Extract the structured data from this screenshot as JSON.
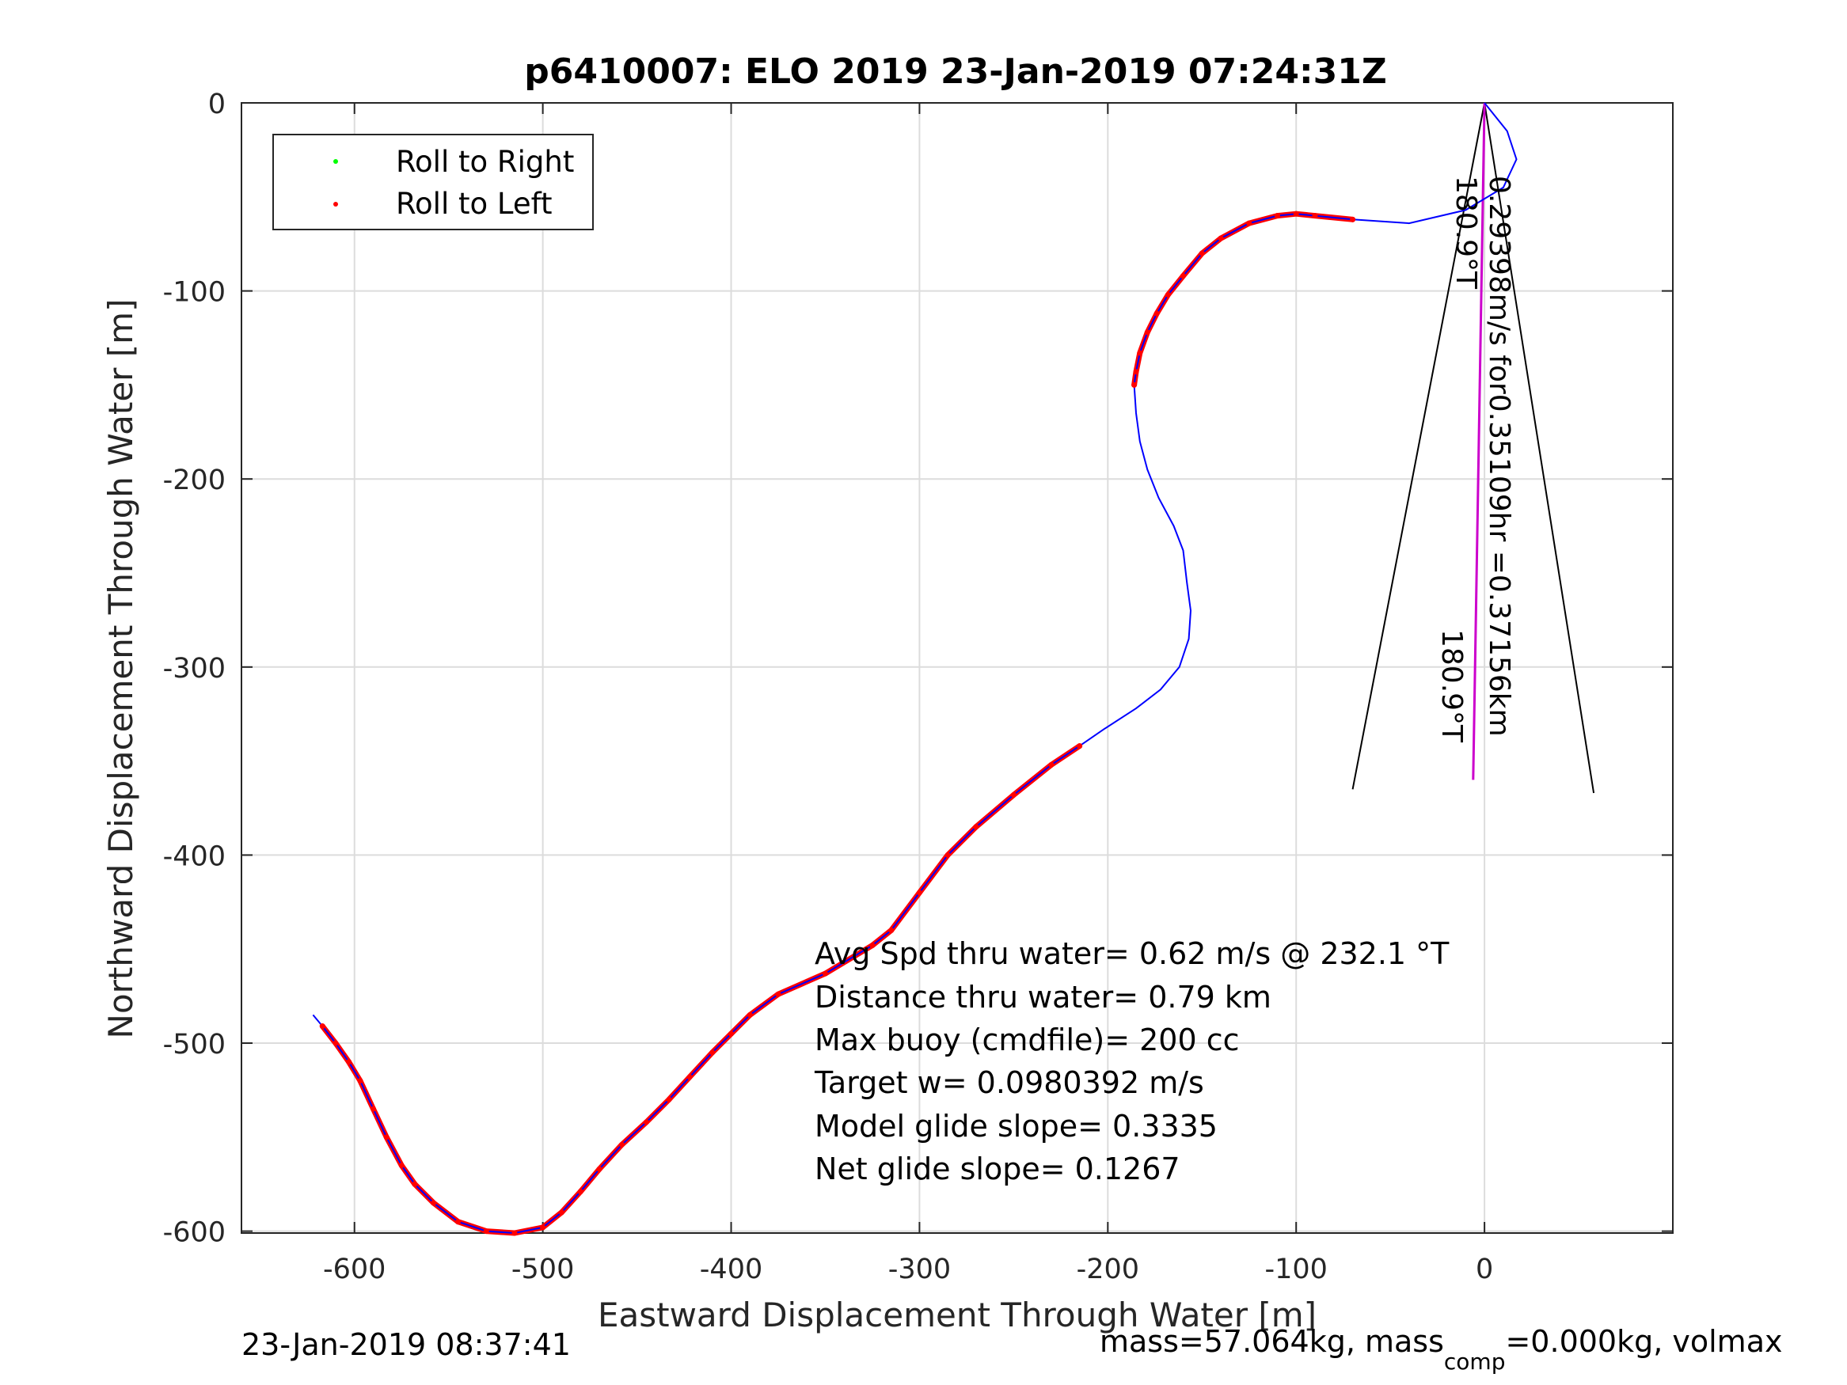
{
  "figure": {
    "title": "p6410007: ELO 2019 23-Jan-2019 07:24:31Z",
    "footer_left": "23-Jan-2019 08:37:41",
    "footer_right": "mass=57.064kg, mass",
    "footer_right_sub": "comp",
    "footer_right_tail": "=0.000kg, volmax",
    "annotations": [
      "Avg Spd thru water=  0.62 m/s @ 232.1 °T",
      "Distance thru water=  0.79 km",
      "Max buoy (cmdfile)= 200 cc",
      "Target w= 0.0980392 m/s",
      "Model glide slope= 0.3335",
      "Net glide slope= 0.1267"
    ],
    "rotated_labels": {
      "speed": "0.29398m/s for0.35109hr =0.37156km",
      "heading_top": "180.9°T",
      "heading_bottom": "180.9°T"
    }
  },
  "chart_data": {
    "type": "line",
    "title": "p6410007: ELO 2019 23-Jan-2019 07:24:31Z",
    "xlabel": "Eastward Displacement Through Water [m]",
    "ylabel": "Northward Displacement Through Water [m]",
    "xlim": [
      -660,
      100
    ],
    "ylim": [
      -601,
      0
    ],
    "xticks": [
      -600,
      -500,
      -400,
      -300,
      -200,
      -100,
      0
    ],
    "yticks": [
      0,
      -100,
      -200,
      -300,
      -400,
      -500,
      -600
    ],
    "grid": true,
    "legend": {
      "placement": "top-left",
      "entries": [
        {
          "label": "Roll to Right",
          "color": "#00ff00"
        },
        {
          "label": "Roll to Left",
          "color": "#ff0000"
        }
      ]
    },
    "colors": {
      "track": "#0000ff",
      "roll_left": "#ff0000",
      "heading_line": "#cc00cc",
      "cone": "#000000"
    },
    "track": [
      [
        0,
        0
      ],
      [
        12,
        -15
      ],
      [
        17,
        -30
      ],
      [
        10,
        -45
      ],
      [
        -10,
        -57
      ],
      [
        -40,
        -64
      ],
      [
        -70,
        -62
      ],
      [
        -90,
        -60
      ],
      [
        -100,
        -59
      ],
      [
        -110,
        -60
      ],
      [
        -125,
        -64
      ],
      [
        -140,
        -72
      ],
      [
        -150,
        -80
      ],
      [
        -160,
        -92
      ],
      [
        -168,
        -102
      ],
      [
        -174,
        -112
      ],
      [
        -179,
        -122
      ],
      [
        -183,
        -133
      ],
      [
        -185,
        -143
      ],
      [
        -186,
        -150
      ],
      [
        -185,
        -165
      ],
      [
        -183,
        -180
      ],
      [
        -179,
        -195
      ],
      [
        -173,
        -210
      ],
      [
        -165,
        -225
      ],
      [
        -160,
        -238
      ],
      [
        -158,
        -255
      ],
      [
        -156,
        -270
      ],
      [
        -157,
        -285
      ],
      [
        -162,
        -300
      ],
      [
        -172,
        -312
      ],
      [
        -185,
        -322
      ],
      [
        -202,
        -333
      ],
      [
        -215,
        -342
      ],
      [
        -230,
        -352
      ],
      [
        -250,
        -368
      ],
      [
        -270,
        -385
      ],
      [
        -285,
        -400
      ],
      [
        -300,
        -420
      ],
      [
        -315,
        -440
      ],
      [
        -325,
        -448
      ],
      [
        -350,
        -463
      ],
      [
        -375,
        -474
      ],
      [
        -390,
        -485
      ],
      [
        -400,
        -495
      ],
      [
        -410,
        -505
      ],
      [
        -422,
        -518
      ],
      [
        -433,
        -530
      ],
      [
        -445,
        -542
      ],
      [
        -458,
        -554
      ],
      [
        -470,
        -567
      ],
      [
        -480,
        -579
      ],
      [
        -490,
        -590
      ],
      [
        -500,
        -598
      ],
      [
        -515,
        -601
      ],
      [
        -530,
        -600
      ],
      [
        -545,
        -595
      ],
      [
        -558,
        -585
      ],
      [
        -568,
        -575
      ],
      [
        -575,
        -565
      ],
      [
        -583,
        -550
      ],
      [
        -590,
        -535
      ],
      [
        -597,
        -520
      ],
      [
        -603,
        -510
      ],
      [
        -610,
        -500
      ],
      [
        -617,
        -491
      ],
      [
        -622,
        -485
      ]
    ],
    "roll_left_ranges": [
      [
        6,
        19
      ],
      [
        33,
        65
      ]
    ],
    "heading_line": [
      [
        0,
        0
      ],
      [
        -6,
        -360
      ]
    ],
    "cone_lines": [
      [
        [
          0,
          0
        ],
        [
          -70,
          -365
        ]
      ],
      [
        [
          0,
          0
        ],
        [
          58,
          -367
        ]
      ]
    ]
  }
}
